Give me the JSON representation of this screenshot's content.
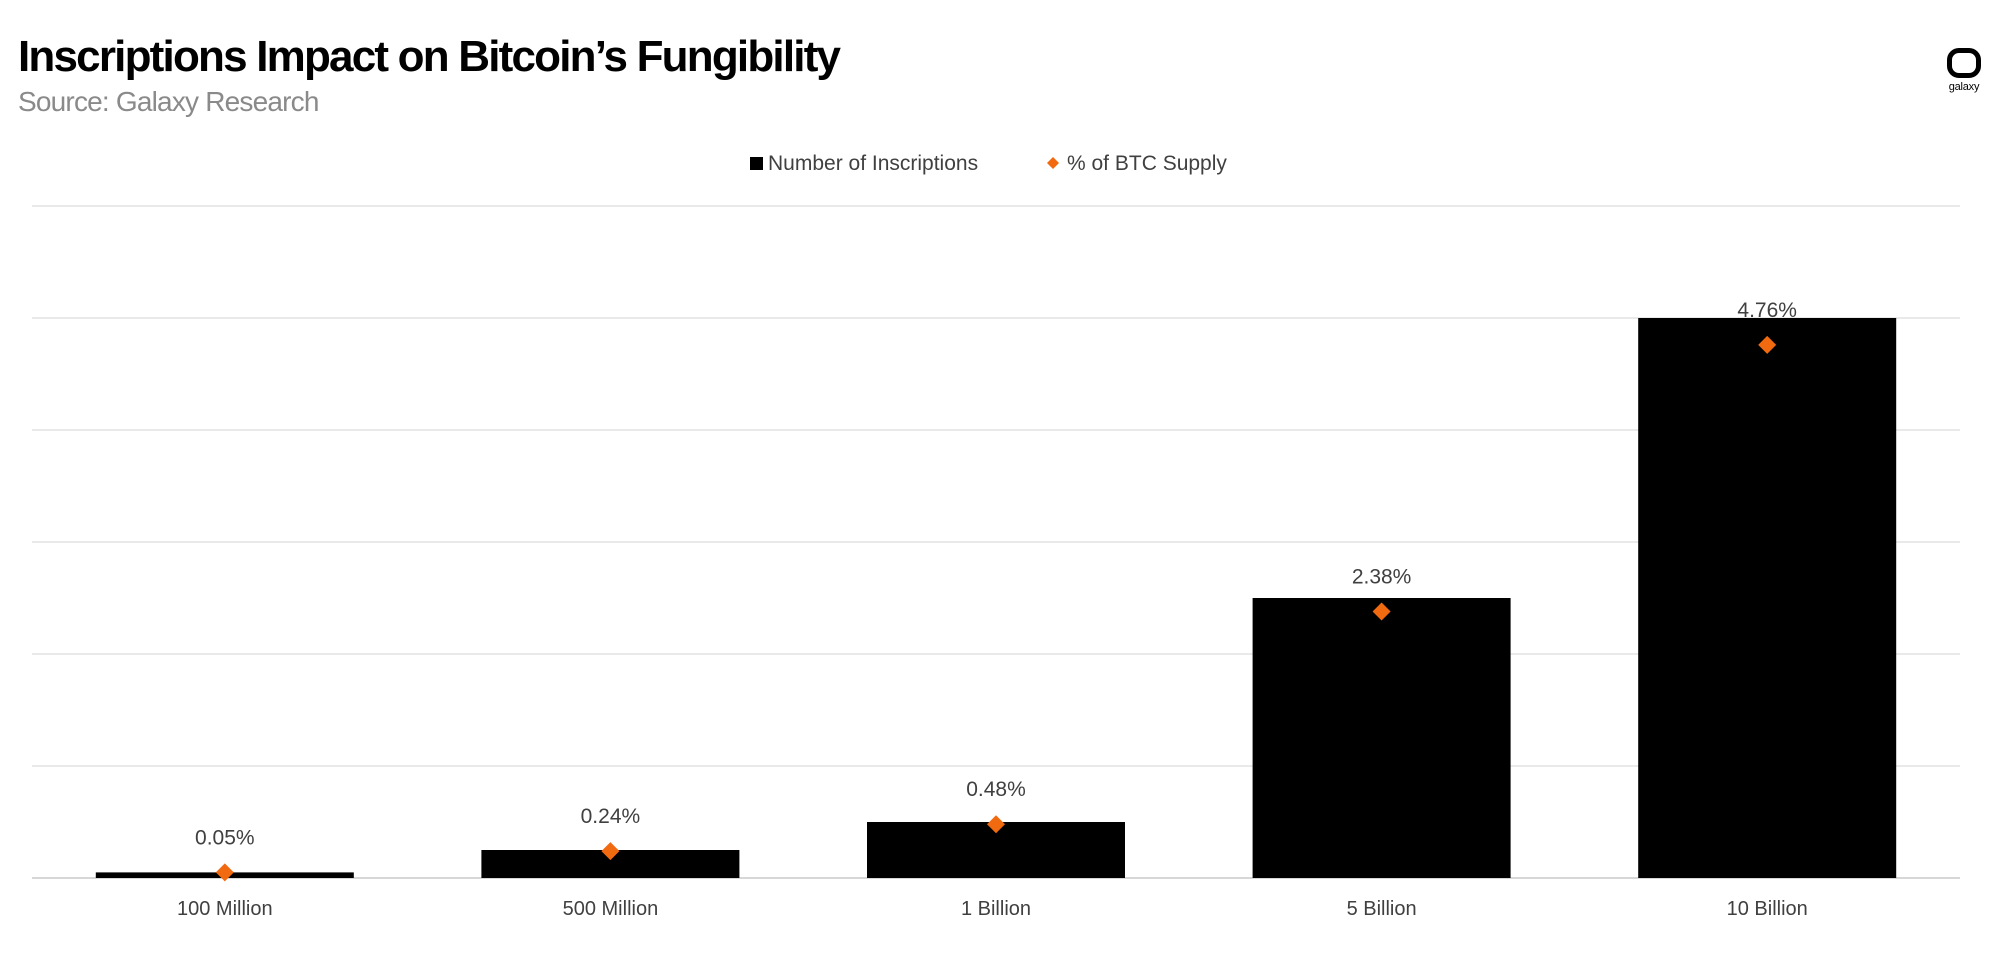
{
  "header": {
    "title": "Inscriptions Impact on Bitcoin’s Fungibility",
    "source": "Source: Galaxy Research",
    "logo_text": "galaxy"
  },
  "chart_data": {
    "type": "bar",
    "categories": [
      "100 Million",
      "500 Million",
      "1 Billion",
      "5 Billion",
      "10 Billion"
    ],
    "series": [
      {
        "name": "Number of Inscriptions",
        "kind": "bar",
        "color": "#000000",
        "values": [
          100000000,
          500000000,
          1000000000,
          5000000000,
          10000000000
        ]
      },
      {
        "name": "% of BTC Supply",
        "kind": "marker",
        "marker": "diamond",
        "color": "#f26a10",
        "values": [
          0.05,
          0.24,
          0.48,
          2.38,
          4.76
        ],
        "labels": [
          "0.05%",
          "0.24%",
          "0.48%",
          "2.38%",
          "4.76%"
        ]
      }
    ],
    "ylim_bars": [
      0,
      12000000000
    ],
    "ylim_markers": [
      0,
      6
    ],
    "grid": true,
    "legend_position": "top-center",
    "xlabel": "",
    "ylabel": ""
  }
}
